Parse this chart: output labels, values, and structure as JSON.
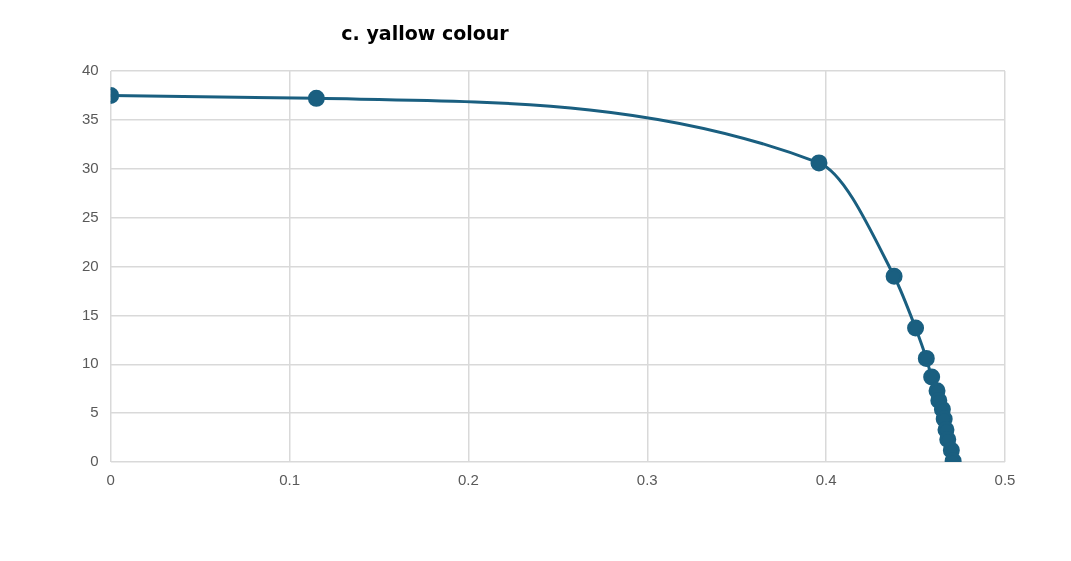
{
  "chart_data": {
    "type": "line",
    "title": "c. yallow colour",
    "x": [
      0,
      0.115,
      0.396,
      0.438,
      0.45,
      0.456,
      0.459,
      0.462,
      0.463,
      0.465,
      0.466,
      0.467,
      0.468,
      0.47,
      0.471
    ],
    "series": [
      {
        "color": "#1a5f80",
        "values": [
          37.5,
          37.2,
          30.6,
          19.0,
          13.7,
          10.6,
          8.7,
          7.3,
          6.3,
          5.4,
          4.4,
          3.3,
          2.3,
          1.2,
          0.1
        ]
      }
    ],
    "xlim": [
      0,
      0.5
    ],
    "xticks": [
      0,
      0.1,
      0.2,
      0.3,
      0.4,
      0.5
    ],
    "ylim": [
      0,
      40
    ],
    "yticks": [
      0,
      5,
      10,
      15,
      20,
      25,
      30,
      35,
      40
    ],
    "grid": true,
    "legend": false,
    "marker": "circle",
    "line_style": "solid"
  }
}
